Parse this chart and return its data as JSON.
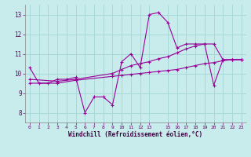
{
  "xlabel": "Windchill (Refroidissement éolien,°C)",
  "ylabel": "",
  "bg_color": "#c8ecec",
  "grid_color": "#a8d8d8",
  "line_color": "#990099",
  "xlim": [
    -0.5,
    23.5
  ],
  "ylim": [
    7.5,
    13.5
  ],
  "yticks": [
    8,
    9,
    10,
    11,
    12,
    13
  ],
  "xticks": [
    0,
    1,
    2,
    3,
    4,
    5,
    6,
    7,
    8,
    9,
    10,
    11,
    12,
    13,
    15,
    16,
    17,
    18,
    19,
    20,
    21,
    22,
    23
  ],
  "line1_x": [
    0,
    1,
    2,
    3,
    4,
    5,
    6,
    7,
    8,
    9,
    10,
    11,
    12,
    13,
    14,
    15,
    16,
    17,
    18,
    19,
    20,
    21,
    22,
    23
  ],
  "line1_y": [
    10.3,
    9.5,
    9.5,
    9.7,
    9.7,
    9.8,
    8.0,
    8.8,
    8.8,
    8.4,
    10.6,
    11.0,
    10.3,
    13.0,
    13.1,
    12.6,
    11.3,
    11.5,
    11.5,
    11.5,
    9.4,
    10.7,
    10.7,
    10.7
  ],
  "line2_x": [
    0,
    3,
    5,
    9,
    10,
    11,
    12,
    13,
    14,
    15,
    16,
    17,
    18,
    19,
    20,
    21,
    22,
    23
  ],
  "line2_y": [
    9.7,
    9.6,
    9.7,
    10.0,
    10.2,
    10.4,
    10.5,
    10.6,
    10.75,
    10.85,
    11.05,
    11.25,
    11.4,
    11.5,
    11.5,
    10.7,
    10.7,
    10.7
  ],
  "line3_x": [
    0,
    3,
    5,
    9,
    10,
    11,
    12,
    13,
    14,
    15,
    16,
    17,
    18,
    19,
    20,
    21,
    22,
    23
  ],
  "line3_y": [
    9.5,
    9.5,
    9.65,
    9.85,
    9.9,
    9.95,
    10.0,
    10.05,
    10.1,
    10.15,
    10.2,
    10.3,
    10.4,
    10.5,
    10.55,
    10.65,
    10.7,
    10.7
  ]
}
